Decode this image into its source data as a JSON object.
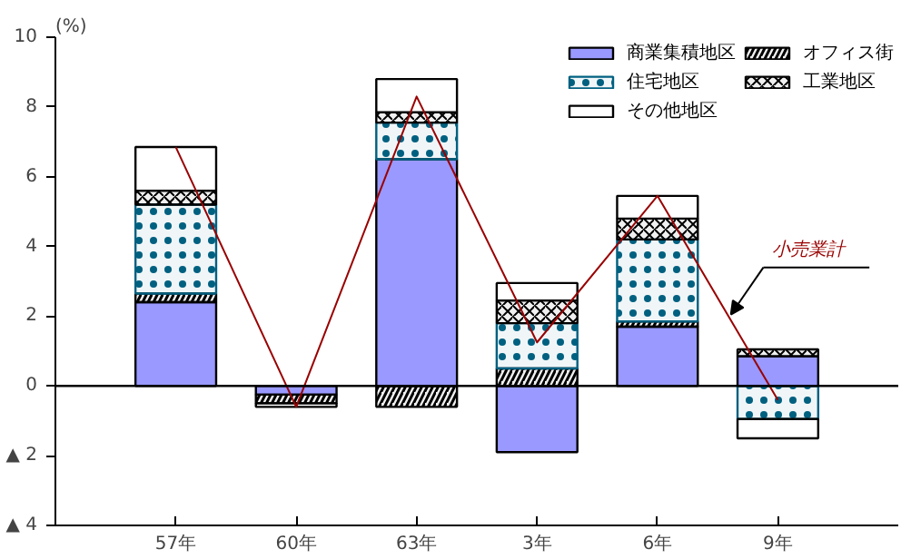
{
  "chart_data": {
    "type": "bar",
    "stacked": true,
    "ylabel": "(%)",
    "categories": [
      "57年",
      "60年",
      "63年",
      "3年",
      "6年",
      "9年"
    ],
    "series": [
      {
        "name": "商業集積地区",
        "color": "#9999ff",
        "values": [
          2.4,
          -0.25,
          6.5,
          -1.9,
          1.7,
          0.85
        ]
      },
      {
        "name": "オフィス街",
        "color": "#000000",
        "values": [
          0.25,
          -0.25,
          -0.6,
          0.5,
          0.15,
          null
        ]
      },
      {
        "name": "住宅地区",
        "color": "#006080",
        "values": [
          2.55,
          null,
          1.05,
          1.3,
          2.35,
          -0.95
        ]
      },
      {
        "name": "工業地区",
        "color": "#000000",
        "values": [
          0.4,
          null,
          0.3,
          0.65,
          0.6,
          0.2
        ]
      },
      {
        "name": "その他地区",
        "color": "#ffffff",
        "values": [
          1.25,
          -0.1,
          0.95,
          0.5,
          0.65,
          -0.55
        ]
      },
      {
        "name": "小売業計",
        "type": "line",
        "color": "#990000",
        "values": [
          6.85,
          -0.6,
          8.3,
          1.25,
          5.45,
          -0.4
        ]
      }
    ],
    "ylim": [
      -4,
      10
    ],
    "yticks": [
      {
        "value": -4,
        "label": "▲ 4"
      },
      {
        "value": -2,
        "label": "▲ 2"
      },
      0,
      2,
      4,
      6,
      8,
      10
    ],
    "ref_lines": [
      {
        "axis": "y",
        "value": 0,
        "color": "#000000"
      }
    ],
    "grid": false,
    "legend": "top right",
    "marker": "none",
    "line_style": "solid"
  }
}
